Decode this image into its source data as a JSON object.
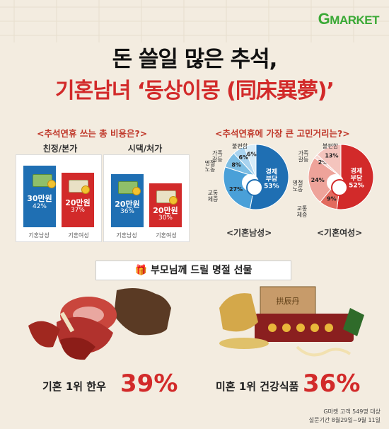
{
  "brand": {
    "logo_g": "G",
    "logo_rest": "MARKET"
  },
  "title": {
    "line1": "돈 쓸일 많은 추석,",
    "line2": "기혼남녀 ‘동상이몽 (同床異夢)’"
  },
  "cost_section": {
    "heading": "<추석연휴 쓰는 총 비용은?>",
    "groups": [
      {
        "label": "친정/본가"
      },
      {
        "label": "시댁/처가"
      }
    ]
  },
  "worry_section": {
    "heading": "<추석연휴에 가장 큰 고민거리는?>"
  },
  "gift_section": {
    "heading": "부모님께 드릴 명절 선물",
    "married": {
      "text": "기혼 1위 한우",
      "pct": "39%"
    },
    "single": {
      "text": "미혼 1위 건강식품",
      "pct": "36%"
    },
    "jar_label": "拱辰丹"
  },
  "footnote": {
    "line1": "G마켓 고객 549명 대상",
    "line2": "설문기간 8월29일~9월 11일"
  },
  "colors": {
    "red": "#d22a2a",
    "blue": "#1f6fb3",
    "green": "#3aa935"
  },
  "chart_data": [
    {
      "type": "bar",
      "title": "친정/본가",
      "categories": [
        "기혼남성",
        "기혼여성"
      ],
      "amounts": [
        "30만원",
        "20만원"
      ],
      "values": [
        42,
        37
      ],
      "value_labels": [
        "42%",
        "37%"
      ],
      "colors": [
        "#1f6fb3",
        "#d22a2a"
      ]
    },
    {
      "type": "bar",
      "title": "시댁/처가",
      "categories": [
        "기혼남성",
        "기혼여성"
      ],
      "amounts": [
        "20만원",
        "20만원"
      ],
      "values": [
        36,
        30
      ],
      "value_labels": [
        "36%",
        "30%"
      ],
      "colors": [
        "#1f6fb3",
        "#d22a2a"
      ]
    },
    {
      "type": "pie",
      "title": "<기혼남성>",
      "slices": [
        {
          "label": "경제\n부담",
          "value": 53,
          "value_label": "53%"
        },
        {
          "label": "교통\n체증",
          "value": 27,
          "value_label": "27%"
        },
        {
          "label": "명절\n노동",
          "value": 8,
          "value_label": "8%"
        },
        {
          "label": "가족\n갈등",
          "value": 6,
          "value_label": "6%"
        },
        {
          "label": "불편함",
          "value": 6,
          "value_label": "6%"
        }
      ],
      "colors": [
        "#1f6fb3",
        "#4aa0d8",
        "#7cbde3",
        "#a9d3ef",
        "#d6ebf8"
      ]
    },
    {
      "type": "pie",
      "title": "<기혼여성>",
      "slices": [
        {
          "label": "경제\n부담",
          "value": 52,
          "value_label": "52%"
        },
        {
          "label": "교통\n체증",
          "value": 9,
          "value_label": "9%"
        },
        {
          "label": "명절\n노동",
          "value": 24,
          "value_label": "24%"
        },
        {
          "label": "가족\n갈등",
          "value": 2,
          "value_label": "2%"
        },
        {
          "label": "불편함",
          "value": 13,
          "value_label": "13%"
        }
      ],
      "colors": [
        "#d22a2a",
        "#e26a5e",
        "#eea39a",
        "#f7d7d2",
        "#f4c4bd"
      ]
    }
  ]
}
